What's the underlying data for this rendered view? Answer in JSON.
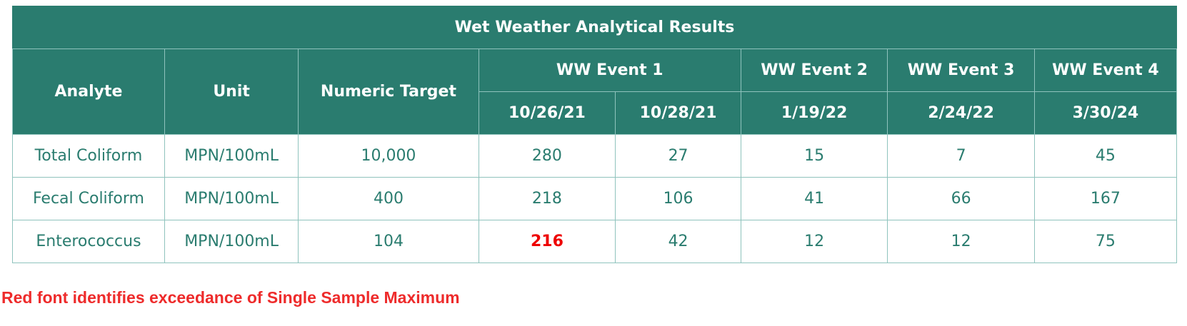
{
  "table": {
    "title": "Wet Weather Analytical Results",
    "headers": {
      "analyte": "Analyte",
      "unit": "Unit",
      "numeric_target": "Numeric Target",
      "events": [
        {
          "label": "WW Event 1",
          "dates": [
            "10/26/21",
            "10/28/21"
          ]
        },
        {
          "label": "WW Event 2",
          "dates": [
            "1/19/22"
          ]
        },
        {
          "label": "WW Event 3",
          "dates": [
            "2/24/22"
          ]
        },
        {
          "label": "WW Event 4",
          "dates": [
            "3/30/24"
          ]
        }
      ]
    },
    "rows": [
      {
        "analyte": "Total Coliform",
        "unit": "MPN/100mL",
        "target": "10,000",
        "values": [
          "280",
          "27",
          "15",
          "7",
          "45"
        ]
      },
      {
        "analyte": "Fecal Coliform",
        "unit": "MPN/100mL",
        "target": "400",
        "values": [
          "218",
          "106",
          "41",
          "66",
          "167"
        ]
      },
      {
        "analyte": "Enterococcus",
        "unit": "MPN/100mL",
        "target": "104",
        "values": [
          "216",
          "42",
          "12",
          "12",
          "75"
        ]
      }
    ]
  },
  "footnote": "Red font identifies exceedance of Single Sample Maximum",
  "colors": {
    "header_background": "#2a7c6f",
    "header_text": "#ffffff",
    "body_text": "#2a7c6f",
    "grid_lines": "#8fc3bd",
    "exceedance": "#ee0000"
  }
}
